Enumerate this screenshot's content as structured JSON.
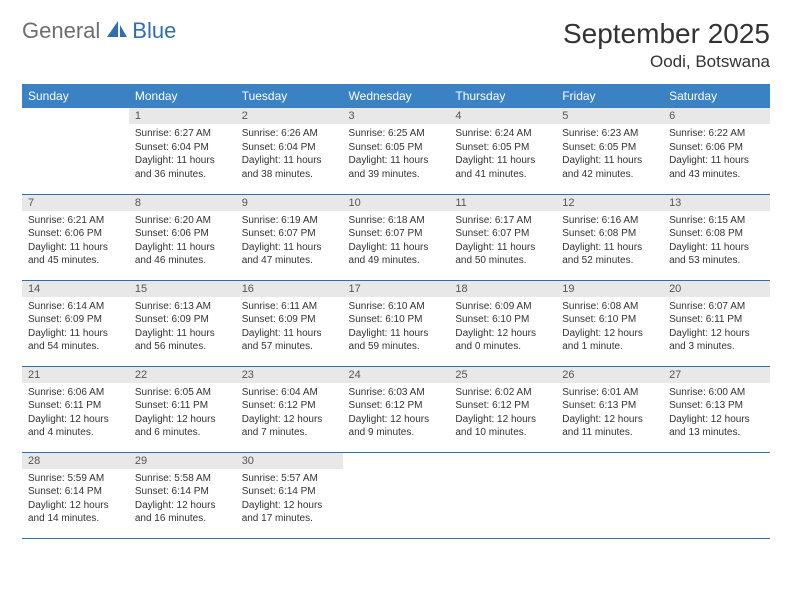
{
  "brand": {
    "general": "General",
    "blue": "Blue",
    "general_color": "#6e6e6e",
    "blue_color": "#2f6fb0",
    "icon_color": "#2f6fb0"
  },
  "header": {
    "month_title": "September 2025",
    "location": "Oodi, Botswana",
    "title_color": "#333333"
  },
  "calendar": {
    "type": "table",
    "header_bg": "#3a82c4",
    "header_fg": "#ffffff",
    "border_color": "#2f6fb0",
    "daynum_bg": "#e8e8e8",
    "daynum_fg": "#555555",
    "cell_text_color": "#333333",
    "font_size_header": 12,
    "font_size_daynum": 11,
    "font_size_body": 10,
    "columns": [
      "Sunday",
      "Monday",
      "Tuesday",
      "Wednesday",
      "Thursday",
      "Friday",
      "Saturday"
    ],
    "weeks": [
      [
        null,
        {
          "n": "1",
          "sr": "6:27 AM",
          "ss": "6:04 PM",
          "dl": "11 hours and 36 minutes."
        },
        {
          "n": "2",
          "sr": "6:26 AM",
          "ss": "6:04 PM",
          "dl": "11 hours and 38 minutes."
        },
        {
          "n": "3",
          "sr": "6:25 AM",
          "ss": "6:05 PM",
          "dl": "11 hours and 39 minutes."
        },
        {
          "n": "4",
          "sr": "6:24 AM",
          "ss": "6:05 PM",
          "dl": "11 hours and 41 minutes."
        },
        {
          "n": "5",
          "sr": "6:23 AM",
          "ss": "6:05 PM",
          "dl": "11 hours and 42 minutes."
        },
        {
          "n": "6",
          "sr": "6:22 AM",
          "ss": "6:06 PM",
          "dl": "11 hours and 43 minutes."
        }
      ],
      [
        {
          "n": "7",
          "sr": "6:21 AM",
          "ss": "6:06 PM",
          "dl": "11 hours and 45 minutes."
        },
        {
          "n": "8",
          "sr": "6:20 AM",
          "ss": "6:06 PM",
          "dl": "11 hours and 46 minutes."
        },
        {
          "n": "9",
          "sr": "6:19 AM",
          "ss": "6:07 PM",
          "dl": "11 hours and 47 minutes."
        },
        {
          "n": "10",
          "sr": "6:18 AM",
          "ss": "6:07 PM",
          "dl": "11 hours and 49 minutes."
        },
        {
          "n": "11",
          "sr": "6:17 AM",
          "ss": "6:07 PM",
          "dl": "11 hours and 50 minutes."
        },
        {
          "n": "12",
          "sr": "6:16 AM",
          "ss": "6:08 PM",
          "dl": "11 hours and 52 minutes."
        },
        {
          "n": "13",
          "sr": "6:15 AM",
          "ss": "6:08 PM",
          "dl": "11 hours and 53 minutes."
        }
      ],
      [
        {
          "n": "14",
          "sr": "6:14 AM",
          "ss": "6:09 PM",
          "dl": "11 hours and 54 minutes."
        },
        {
          "n": "15",
          "sr": "6:13 AM",
          "ss": "6:09 PM",
          "dl": "11 hours and 56 minutes."
        },
        {
          "n": "16",
          "sr": "6:11 AM",
          "ss": "6:09 PM",
          "dl": "11 hours and 57 minutes."
        },
        {
          "n": "17",
          "sr": "6:10 AM",
          "ss": "6:10 PM",
          "dl": "11 hours and 59 minutes."
        },
        {
          "n": "18",
          "sr": "6:09 AM",
          "ss": "6:10 PM",
          "dl": "12 hours and 0 minutes."
        },
        {
          "n": "19",
          "sr": "6:08 AM",
          "ss": "6:10 PM",
          "dl": "12 hours and 1 minute."
        },
        {
          "n": "20",
          "sr": "6:07 AM",
          "ss": "6:11 PM",
          "dl": "12 hours and 3 minutes."
        }
      ],
      [
        {
          "n": "21",
          "sr": "6:06 AM",
          "ss": "6:11 PM",
          "dl": "12 hours and 4 minutes."
        },
        {
          "n": "22",
          "sr": "6:05 AM",
          "ss": "6:11 PM",
          "dl": "12 hours and 6 minutes."
        },
        {
          "n": "23",
          "sr": "6:04 AM",
          "ss": "6:12 PM",
          "dl": "12 hours and 7 minutes."
        },
        {
          "n": "24",
          "sr": "6:03 AM",
          "ss": "6:12 PM",
          "dl": "12 hours and 9 minutes."
        },
        {
          "n": "25",
          "sr": "6:02 AM",
          "ss": "6:12 PM",
          "dl": "12 hours and 10 minutes."
        },
        {
          "n": "26",
          "sr": "6:01 AM",
          "ss": "6:13 PM",
          "dl": "12 hours and 11 minutes."
        },
        {
          "n": "27",
          "sr": "6:00 AM",
          "ss": "6:13 PM",
          "dl": "12 hours and 13 minutes."
        }
      ],
      [
        {
          "n": "28",
          "sr": "5:59 AM",
          "ss": "6:14 PM",
          "dl": "12 hours and 14 minutes."
        },
        {
          "n": "29",
          "sr": "5:58 AM",
          "ss": "6:14 PM",
          "dl": "12 hours and 16 minutes."
        },
        {
          "n": "30",
          "sr": "5:57 AM",
          "ss": "6:14 PM",
          "dl": "12 hours and 17 minutes."
        },
        null,
        null,
        null,
        null
      ]
    ],
    "labels": {
      "sunrise_prefix": "Sunrise: ",
      "sunset_prefix": "Sunset: ",
      "daylight_prefix": "Daylight: "
    }
  }
}
